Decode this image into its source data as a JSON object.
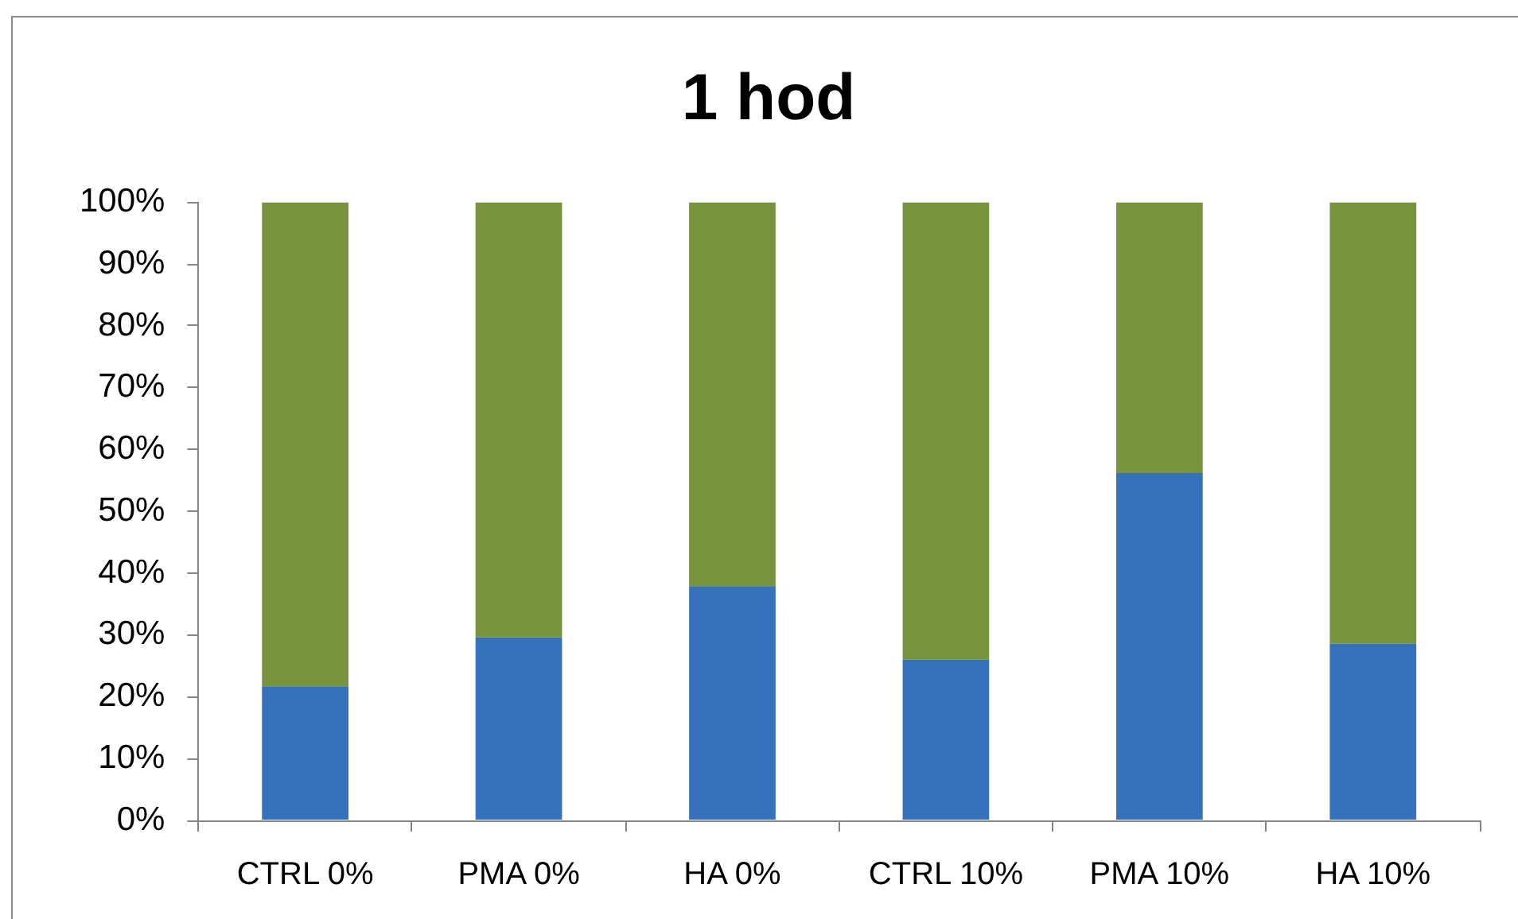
{
  "chart_data": {
    "type": "bar",
    "title": "1 hod",
    "categories": [
      "CTRL 0%",
      "PMA 0%",
      "HA 0%",
      "CTRL 10%",
      "PMA 10%",
      "HA 10%"
    ],
    "stacked": true,
    "series": [
      {
        "color": "#3671bb",
        "values": [
          21.7,
          29.6,
          37.9,
          26,
          56.2,
          28.6
        ]
      },
      {
        "color": "#77933c",
        "values": [
          78.3,
          70.4,
          62.1,
          74,
          43.8,
          71.4
        ]
      }
    ],
    "ylim": [
      0,
      100
    ],
    "yticks": [
      {
        "value": 0,
        "label": "0%"
      },
      {
        "value": 10,
        "label": "10%"
      },
      {
        "value": 20,
        "label": "20%"
      },
      {
        "value": 30,
        "label": "30%"
      },
      {
        "value": 40,
        "label": "40%"
      },
      {
        "value": 50,
        "label": "50%"
      },
      {
        "value": 60,
        "label": "60%"
      },
      {
        "value": 70,
        "label": "70%"
      },
      {
        "value": 80,
        "label": "80%"
      },
      {
        "value": 90,
        "label": "90%"
      },
      {
        "value": 100,
        "label": "100%"
      }
    ]
  }
}
